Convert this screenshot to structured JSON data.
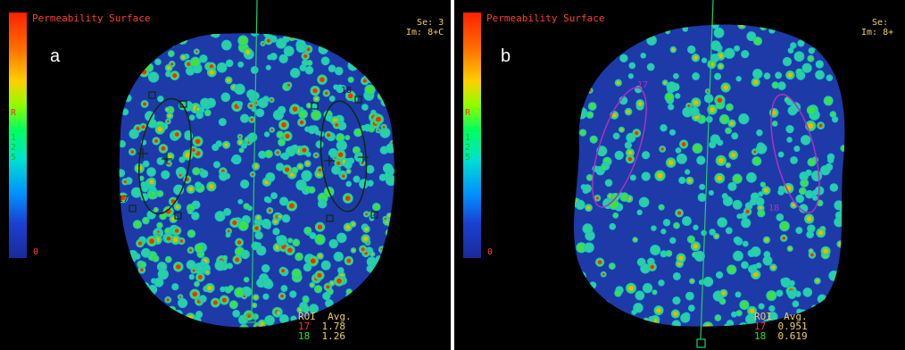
{
  "panels": [
    {
      "letter": "a",
      "title": "Permeability Surface",
      "se": "Se: 3",
      "im": "Im: 8+C",
      "scale": [
        "R",
        "1",
        "2",
        "5"
      ],
      "zero": "0",
      "roi_labels": [
        "17",
        "18"
      ],
      "roi_table": {
        "header": "ROI  Avg.",
        "rows": [
          {
            "roi": "17",
            "avg": "1.78"
          },
          {
            "roi": "18",
            "avg": "1.26"
          }
        ]
      }
    },
    {
      "letter": "b",
      "title": "Permeability Surface",
      "se": "Se:",
      "im": "Im: 8+",
      "scale": [
        "R",
        "1",
        "2",
        "5"
      ],
      "zero": "0",
      "roi_labels": [
        "17",
        "18"
      ],
      "roi_table": {
        "header": "ROI  Avg.",
        "rows": [
          {
            "roi": "17",
            "avg": "0.951"
          },
          {
            "roi": "18",
            "avg": "0.619"
          }
        ]
      }
    }
  ],
  "colors": {
    "roi17": "#ff3030",
    "roi18": "#30e030",
    "header": "#f0d060",
    "title": "#ff4030"
  }
}
